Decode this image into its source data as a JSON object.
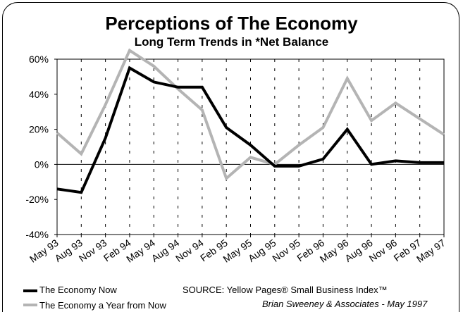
{
  "chart_data": {
    "type": "line",
    "title": "Perceptions of The Economy",
    "subtitle": "Long Term Trends in *Net Balance",
    "categories": [
      "May 93",
      "Aug 93",
      "Nov 93",
      "Feb 94",
      "May 94",
      "Aug 94",
      "Nov 94",
      "Feb 95",
      "May 95",
      "Aug 95",
      "Nov 95",
      "Feb 96",
      "May 96",
      "Aug 96",
      "Nov 96",
      "Feb 97",
      "May 97"
    ],
    "ylim": [
      -40,
      60
    ],
    "yticks": [
      "60%",
      "40%",
      "20%",
      "0%",
      "-20%",
      "-40%"
    ],
    "ytick_values": [
      60,
      40,
      20,
      0,
      -20,
      -40
    ],
    "grid": "vertical dotted",
    "series": [
      {
        "name": "The Economy Now",
        "color": "#000000",
        "values": [
          -14,
          -16,
          15,
          55,
          47,
          44,
          44,
          21,
          11,
          -1,
          -1,
          3,
          20,
          0,
          2,
          1,
          1
        ]
      },
      {
        "name": "The Economy a Year from Now",
        "color": "#b4b4b4",
        "values": [
          18,
          6,
          34,
          65,
          56,
          43,
          31,
          -8,
          4,
          0,
          11,
          21,
          49,
          25,
          35,
          26,
          17
        ]
      }
    ],
    "source": "SOURCE: Yellow Pages® Small Business Index™",
    "credit": "Brian Sweeney & Associates - May 1997"
  }
}
